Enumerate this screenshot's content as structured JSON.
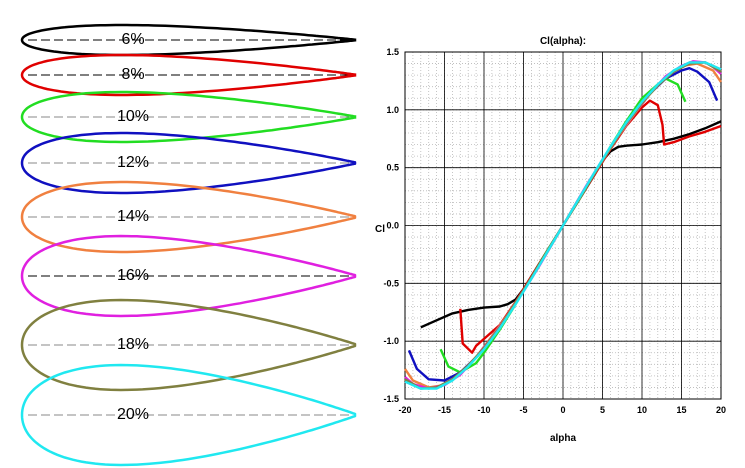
{
  "airfoils": [
    {
      "label": "6%",
      "thickness": 0.06,
      "color": "#000000"
    },
    {
      "label": "8%",
      "thickness": 0.08,
      "color": "#e00000"
    },
    {
      "label": "10%",
      "thickness": 0.1,
      "color": "#22dd22"
    },
    {
      "label": "12%",
      "thickness": 0.12,
      "color": "#1010c0"
    },
    {
      "label": "14%",
      "thickness": 0.14,
      "color": "#f08040"
    },
    {
      "label": "16%",
      "thickness": 0.16,
      "color": "#e020e0"
    },
    {
      "label": "18%",
      "thickness": 0.18,
      "color": "#808040"
    },
    {
      "label": "20%",
      "thickness": 0.2,
      "color": "#20e8f0"
    }
  ],
  "chart_data": {
    "type": "line",
    "title": "Cl(alpha):",
    "xlabel": "alpha",
    "ylabel": "Cl",
    "xlim": [
      -20,
      20
    ],
    "ylim": [
      -1.5,
      1.5
    ],
    "xticks": [
      "-20",
      "-15",
      "-10",
      "-5",
      "0",
      "5",
      "10",
      "15",
      "20"
    ],
    "yticks": [
      "1.5",
      "1.0",
      "0.5",
      "0.0",
      "-0.5",
      "-1.0",
      "-1.5"
    ],
    "grid": true,
    "series": [
      {
        "color": "#000000",
        "points": [
          [
            -18,
            -0.88
          ],
          [
            -16,
            -0.82
          ],
          [
            -14,
            -0.76
          ],
          [
            -12,
            -0.73
          ],
          [
            -10,
            -0.71
          ],
          [
            -8,
            -0.7
          ],
          [
            -7,
            -0.68
          ],
          [
            -6,
            -0.64
          ],
          [
            -5,
            -0.55
          ],
          [
            -4,
            -0.44
          ],
          [
            -2,
            -0.22
          ],
          [
            0,
            0.0
          ],
          [
            2,
            0.22
          ],
          [
            4,
            0.44
          ],
          [
            5,
            0.56
          ],
          [
            6,
            0.64
          ],
          [
            7,
            0.68
          ],
          [
            8,
            0.69
          ],
          [
            10,
            0.7
          ],
          [
            12,
            0.72
          ],
          [
            14,
            0.75
          ],
          [
            16,
            0.79
          ],
          [
            18,
            0.84
          ],
          [
            20,
            0.9
          ]
        ]
      },
      {
        "color": "#e00000",
        "points": [
          [
            -13,
            -0.72
          ],
          [
            -12.7,
            -1.02
          ],
          [
            -11.5,
            -1.1
          ],
          [
            -11,
            -1.04
          ],
          [
            -10,
            -0.98
          ],
          [
            -8,
            -0.86
          ],
          [
            -6,
            -0.66
          ],
          [
            -4,
            -0.44
          ],
          [
            -2,
            -0.22
          ],
          [
            0,
            0.0
          ],
          [
            2,
            0.22
          ],
          [
            4,
            0.44
          ],
          [
            6,
            0.66
          ],
          [
            8,
            0.86
          ],
          [
            10,
            1.02
          ],
          [
            11,
            1.08
          ],
          [
            12,
            1.04
          ],
          [
            12.6,
            0.87
          ],
          [
            12.8,
            0.7
          ],
          [
            14,
            0.72
          ],
          [
            16,
            0.77
          ],
          [
            18,
            0.81
          ],
          [
            20,
            0.86
          ]
        ]
      },
      {
        "color": "#22dd22",
        "points": [
          [
            -15.5,
            -1.07
          ],
          [
            -14.5,
            -1.22
          ],
          [
            -13,
            -1.27
          ],
          [
            -11,
            -1.19
          ],
          [
            -10,
            -1.1
          ],
          [
            -8,
            -0.9
          ],
          [
            -6,
            -0.68
          ],
          [
            -4,
            -0.45
          ],
          [
            -2,
            -0.22
          ],
          [
            0,
            0.0
          ],
          [
            2,
            0.22
          ],
          [
            4,
            0.45
          ],
          [
            6,
            0.68
          ],
          [
            8,
            0.9
          ],
          [
            10,
            1.1
          ],
          [
            12,
            1.22
          ],
          [
            13,
            1.27
          ],
          [
            14.5,
            1.22
          ],
          [
            15.5,
            1.07
          ]
        ]
      },
      {
        "color": "#1010c0",
        "points": [
          [
            -19.5,
            -1.08
          ],
          [
            -18.5,
            -1.24
          ],
          [
            -17,
            -1.33
          ],
          [
            -15,
            -1.34
          ],
          [
            -13,
            -1.27
          ],
          [
            -11,
            -1.14
          ],
          [
            -9,
            -0.96
          ],
          [
            -7,
            -0.77
          ],
          [
            -5,
            -0.56
          ],
          [
            -3,
            -0.34
          ],
          [
            0,
            0.0
          ],
          [
            3,
            0.34
          ],
          [
            5,
            0.56
          ],
          [
            7,
            0.77
          ],
          [
            9,
            0.96
          ],
          [
            11,
            1.14
          ],
          [
            13,
            1.27
          ],
          [
            15,
            1.34
          ],
          [
            16,
            1.36
          ],
          [
            17,
            1.33
          ],
          [
            18.5,
            1.24
          ],
          [
            19.5,
            1.08
          ]
        ]
      },
      {
        "color": "#f08040",
        "points": [
          [
            -20,
            -1.24
          ],
          [
            -19,
            -1.34
          ],
          [
            -17,
            -1.4
          ],
          [
            -15,
            -1.38
          ],
          [
            -13,
            -1.28
          ],
          [
            -11,
            -1.14
          ],
          [
            -9,
            -0.96
          ],
          [
            -7,
            -0.77
          ],
          [
            -5,
            -0.56
          ],
          [
            -3,
            -0.34
          ],
          [
            0,
            0.0
          ],
          [
            3,
            0.34
          ],
          [
            5,
            0.56
          ],
          [
            7,
            0.77
          ],
          [
            9,
            0.96
          ],
          [
            11,
            1.14
          ],
          [
            13,
            1.28
          ],
          [
            15,
            1.38
          ],
          [
            17,
            1.4
          ],
          [
            19,
            1.34
          ],
          [
            20,
            1.24
          ]
        ]
      },
      {
        "color": "#e020e0",
        "points": [
          [
            -20,
            -1.31
          ],
          [
            -19,
            -1.37
          ],
          [
            -17,
            -1.41
          ],
          [
            -15,
            -1.38
          ],
          [
            -13,
            -1.29
          ],
          [
            -11,
            -1.14
          ],
          [
            -9,
            -0.97
          ],
          [
            -7,
            -0.78
          ],
          [
            -5,
            -0.57
          ],
          [
            -3,
            -0.35
          ],
          [
            0,
            0.0
          ],
          [
            3,
            0.35
          ],
          [
            5,
            0.57
          ],
          [
            7,
            0.78
          ],
          [
            9,
            0.97
          ],
          [
            11,
            1.14
          ],
          [
            13,
            1.29
          ],
          [
            15,
            1.38
          ],
          [
            16.5,
            1.42
          ],
          [
            18,
            1.41
          ],
          [
            19,
            1.37
          ],
          [
            20,
            1.31
          ]
        ]
      },
      {
        "color": "#808040",
        "points": [
          [
            -20,
            -1.33
          ],
          [
            -18,
            -1.41
          ],
          [
            -16,
            -1.4
          ],
          [
            -14,
            -1.33
          ],
          [
            -12,
            -1.21
          ],
          [
            -10,
            -1.06
          ],
          [
            -8,
            -0.88
          ],
          [
            -6,
            -0.67
          ],
          [
            -4,
            -0.45
          ],
          [
            -2,
            -0.23
          ],
          [
            0,
            0.0
          ],
          [
            2,
            0.23
          ],
          [
            4,
            0.45
          ],
          [
            6,
            0.67
          ],
          [
            8,
            0.88
          ],
          [
            10,
            1.06
          ],
          [
            12,
            1.21
          ],
          [
            14,
            1.33
          ],
          [
            16,
            1.4
          ],
          [
            18,
            1.41
          ],
          [
            20,
            1.33
          ]
        ]
      },
      {
        "color": "#20e8f0",
        "points": [
          [
            -20,
            -1.35
          ],
          [
            -18,
            -1.41
          ],
          [
            -16,
            -1.41
          ],
          [
            -14,
            -1.34
          ],
          [
            -12,
            -1.22
          ],
          [
            -10,
            -1.07
          ],
          [
            -8,
            -0.89
          ],
          [
            -6,
            -0.68
          ],
          [
            -4,
            -0.46
          ],
          [
            -2,
            -0.23
          ],
          [
            0,
            0.0
          ],
          [
            2,
            0.23
          ],
          [
            4,
            0.46
          ],
          [
            6,
            0.68
          ],
          [
            8,
            0.89
          ],
          [
            10,
            1.07
          ],
          [
            12,
            1.22
          ],
          [
            14,
            1.34
          ],
          [
            16,
            1.41
          ],
          [
            18,
            1.41
          ],
          [
            20,
            1.35
          ]
        ]
      }
    ]
  }
}
